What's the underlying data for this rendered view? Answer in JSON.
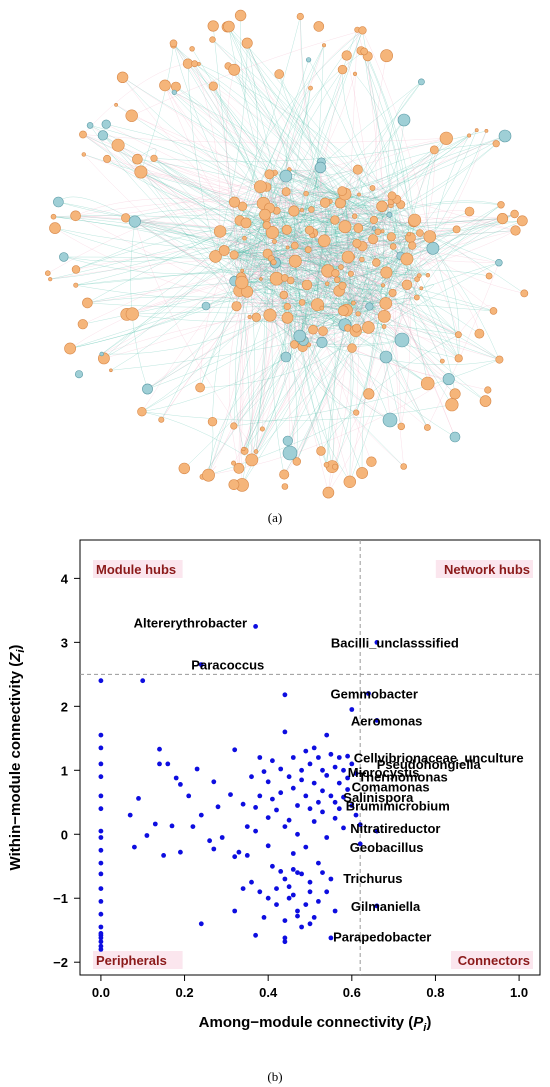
{
  "panels": {
    "a_label": "(a)",
    "b_label": "(b)"
  },
  "colors": {
    "node_orange": "#f5b57a",
    "node_orange_stroke": "#d8894a",
    "node_blue": "#9fcfd6",
    "node_blue_stroke": "#5a9aa5",
    "edge_teal": "#3cb6a0",
    "edge_pink": "#f2a7c0",
    "scatter_point": "#0d0de0",
    "quadrant_text": "#8b1a1a",
    "quadrant_bg": "#fbe6ee"
  },
  "chart_data": {
    "type": "scatter",
    "xlabel": "Among−module connectivity (",
    "xlabel_var": "P",
    "xlabel_sub": "i",
    "xlabel_end": ")",
    "ylabel": "Within−module connectivity  (",
    "ylabel_var": "Z",
    "ylabel_sub": "i",
    "ylabel_end": ")",
    "xlim": [
      -0.05,
      1.05
    ],
    "ylim": [
      -2.2,
      4.6
    ],
    "xticks": [
      0.0,
      0.2,
      0.4,
      0.6,
      0.8,
      1.0
    ],
    "xtick_labels": [
      "0.0",
      "0.2",
      "0.4",
      "0.6",
      "0.8",
      "1.0"
    ],
    "yticks": [
      -2,
      -1,
      0,
      1,
      2,
      3,
      4
    ],
    "ytick_labels": [
      "−2",
      "−1",
      "0",
      "1",
      "2",
      "3",
      "4"
    ],
    "thresholds": {
      "x": 0.62,
      "y": 2.5
    },
    "quadrant_labels": {
      "top_left": "Module hubs",
      "top_right": "Network hubs",
      "bottom_left": "Peripherals",
      "bottom_right": "Connectors"
    },
    "annotations": [
      {
        "text": "Altererythrobacter",
        "x": 0.37,
        "y": 3.25
      },
      {
        "text": "Bacilli_unclasssified",
        "x": 0.66,
        "y": 3.0
      },
      {
        "text": "Paracoccus",
        "x": 0.24,
        "y": 2.65
      },
      {
        "text": "Gemmobacter",
        "x": 0.64,
        "y": 2.2
      },
      {
        "text": "Aeromonas",
        "x": 0.66,
        "y": 1.78
      },
      {
        "text": "Cellvibrionaceae_unculture",
        "x": 0.6,
        "y": 1.2
      },
      {
        "text": "Pseudohongiella",
        "x": 0.65,
        "y": 1.1
      },
      {
        "text": "Microcystis",
        "x": 0.6,
        "y": 0.97
      },
      {
        "text": "Thermomonas",
        "x": 0.62,
        "y": 0.9
      },
      {
        "text": "Comamonas",
        "x": 0.59,
        "y": 0.75
      },
      {
        "text": "Salinispora",
        "x": 0.57,
        "y": 0.58
      },
      {
        "text": "Brumimicrobium",
        "x": 0.6,
        "y": 0.45
      },
      {
        "text": "Nitratireductor",
        "x": 0.62,
        "y": 0.1
      },
      {
        "text": "Geobacillus",
        "x": 0.6,
        "y": -0.2
      },
      {
        "text": "Trichurus",
        "x": 0.57,
        "y": -0.68
      },
      {
        "text": "Gilmaniella",
        "x": 0.66,
        "y": -1.12
      },
      {
        "text": "Parapedobacter",
        "x": 0.56,
        "y": -1.6
      }
    ],
    "points": [
      [
        0,
        2.4
      ],
      [
        0,
        1.55
      ],
      [
        0,
        1.35
      ],
      [
        0,
        1.1
      ],
      [
        0,
        0.9
      ],
      [
        0,
        0.6
      ],
      [
        0,
        0.4
      ],
      [
        0,
        0.05
      ],
      [
        0,
        -0.05
      ],
      [
        0,
        -0.25
      ],
      [
        0,
        -0.45
      ],
      [
        0,
        -0.62
      ],
      [
        0,
        -0.85
      ],
      [
        0,
        -1.05
      ],
      [
        0,
        -1.25
      ],
      [
        0,
        -1.45
      ],
      [
        0,
        -1.58
      ],
      [
        0,
        -1.62
      ],
      [
        0,
        -1.68
      ],
      [
        0,
        -1.75
      ],
      [
        0,
        -1.8
      ],
      [
        0,
        -1.55
      ],
      [
        0.1,
        2.4
      ],
      [
        0.37,
        3.25
      ],
      [
        0.24,
        2.65
      ],
      [
        0.66,
        3.0
      ],
      [
        0.64,
        2.2
      ],
      [
        0.66,
        1.78
      ],
      [
        0.44,
        2.18
      ],
      [
        0.6,
        1.95
      ],
      [
        0.62,
        0.15
      ],
      [
        0.66,
        0.05
      ],
      [
        0.62,
        -0.15
      ],
      [
        0.66,
        -1.12
      ],
      [
        0.07,
        0.3
      ],
      [
        0.08,
        -0.2
      ],
      [
        0.09,
        0.56
      ],
      [
        0.11,
        -0.02
      ],
      [
        0.13,
        0.16
      ],
      [
        0.14,
        1.33
      ],
      [
        0.14,
        1.1
      ],
      [
        0.15,
        -0.33
      ],
      [
        0.16,
        1.1
      ],
      [
        0.17,
        0.13
      ],
      [
        0.18,
        0.88
      ],
      [
        0.19,
        0.78
      ],
      [
        0.19,
        -0.28
      ],
      [
        0.21,
        0.6
      ],
      [
        0.22,
        0.12
      ],
      [
        0.23,
        1.02
      ],
      [
        0.24,
        0.3
      ],
      [
        0.26,
        -0.1
      ],
      [
        0.27,
        0.82
      ],
      [
        0.27,
        -0.23
      ],
      [
        0.28,
        0.43
      ],
      [
        0.29,
        -0.05
      ],
      [
        0.31,
        0.62
      ],
      [
        0.32,
        1.32
      ],
      [
        0.32,
        -0.35
      ],
      [
        0.33,
        -0.28
      ],
      [
        0.34,
        0.47
      ],
      [
        0.35,
        -0.33
      ],
      [
        0.35,
        0.12
      ],
      [
        0.36,
        0.9
      ],
      [
        0.37,
        0.42
      ],
      [
        0.37,
        0.05
      ],
      [
        0.38,
        1.2
      ],
      [
        0.38,
        0.6
      ],
      [
        0.39,
        0.98
      ],
      [
        0.4,
        0.82
      ],
      [
        0.4,
        0.26
      ],
      [
        0.4,
        -0.18
      ],
      [
        0.41,
        1.15
      ],
      [
        0.41,
        0.55
      ],
      [
        0.42,
        0.38
      ],
      [
        0.42,
        -0.85
      ],
      [
        0.43,
        1.02
      ],
      [
        0.43,
        0.65
      ],
      [
        0.44,
        1.6
      ],
      [
        0.44,
        0.12
      ],
      [
        0.44,
        -0.7
      ],
      [
        0.45,
        0.9
      ],
      [
        0.45,
        0.22
      ],
      [
        0.45,
        -1.0
      ],
      [
        0.46,
        1.2
      ],
      [
        0.46,
        0.72
      ],
      [
        0.46,
        -0.55
      ],
      [
        0.47,
        0.45
      ],
      [
        0.47,
        0.0
      ],
      [
        0.47,
        -1.2
      ],
      [
        0.48,
        1.0
      ],
      [
        0.48,
        0.85
      ],
      [
        0.48,
        -0.62
      ],
      [
        0.49,
        1.3
      ],
      [
        0.49,
        0.6
      ],
      [
        0.49,
        -0.2
      ],
      [
        0.5,
        1.1
      ],
      [
        0.5,
        0.4
      ],
      [
        0.5,
        -0.9
      ],
      [
        0.51,
        1.35
      ],
      [
        0.51,
        0.8
      ],
      [
        0.51,
        0.2
      ],
      [
        0.51,
        -1.3
      ],
      [
        0.52,
        1.2
      ],
      [
        0.52,
        0.5
      ],
      [
        0.52,
        -0.45
      ],
      [
        0.53,
        1.0
      ],
      [
        0.53,
        0.68
      ],
      [
        0.53,
        0.35
      ],
      [
        0.54,
        1.55
      ],
      [
        0.54,
        0.92
      ],
      [
        0.54,
        -0.05
      ],
      [
        0.55,
        1.25
      ],
      [
        0.55,
        0.6
      ],
      [
        0.55,
        -0.7
      ],
      [
        0.56,
        1.05
      ],
      [
        0.56,
        0.5
      ],
      [
        0.56,
        0.25
      ],
      [
        0.57,
        1.2
      ],
      [
        0.57,
        0.8
      ],
      [
        0.57,
        0.4
      ],
      [
        0.58,
        1.0
      ],
      [
        0.58,
        0.58
      ],
      [
        0.58,
        0.1
      ],
      [
        0.59,
        1.22
      ],
      [
        0.59,
        0.88
      ],
      [
        0.59,
        0.7
      ],
      [
        0.6,
        0.45
      ],
      [
        0.6,
        1.1
      ],
      [
        0.61,
        0.95
      ],
      [
        0.61,
        0.3
      ],
      [
        0.45,
        -0.82
      ],
      [
        0.46,
        -0.95
      ],
      [
        0.47,
        -0.6
      ],
      [
        0.44,
        -1.35
      ],
      [
        0.42,
        -1.1
      ],
      [
        0.4,
        -1.0
      ],
      [
        0.38,
        -0.9
      ],
      [
        0.39,
        -1.3
      ],
      [
        0.48,
        -1.45
      ],
      [
        0.49,
        -1.1
      ],
      [
        0.5,
        -0.75
      ],
      [
        0.52,
        -1.05
      ],
      [
        0.53,
        -0.6
      ],
      [
        0.44,
        -1.62
      ],
      [
        0.44,
        -1.68
      ],
      [
        0.37,
        -1.58
      ],
      [
        0.55,
        -1.62
      ],
      [
        0.32,
        -1.2
      ],
      [
        0.24,
        -1.4
      ],
      [
        0.47,
        -1.28
      ],
      [
        0.43,
        -0.58
      ],
      [
        0.46,
        -0.3
      ],
      [
        0.41,
        -0.5
      ],
      [
        0.36,
        -0.75
      ],
      [
        0.34,
        -0.85
      ],
      [
        0.54,
        -0.9
      ],
      [
        0.56,
        -1.2
      ],
      [
        0.5,
        -1.4
      ]
    ]
  }
}
